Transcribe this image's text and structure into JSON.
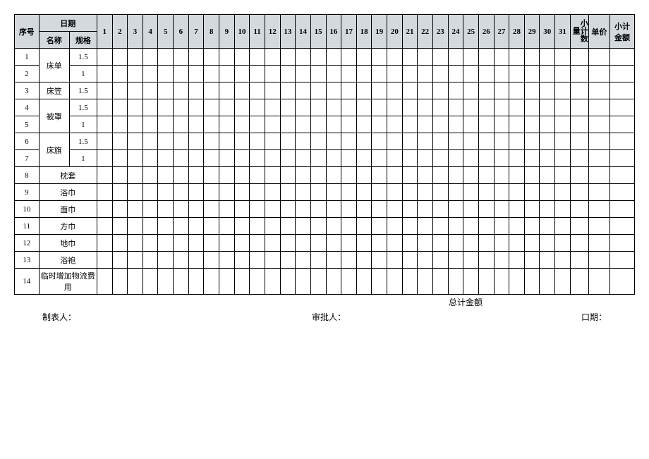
{
  "header": {
    "seq": "序号",
    "date": "日期",
    "name": "名称",
    "spec": "规格",
    "subqty": "小计数量",
    "price": "单价",
    "subamt": "小计金额",
    "days": [
      "1",
      "2",
      "3",
      "4",
      "5",
      "6",
      "7",
      "8",
      "9",
      "10",
      "11",
      "12",
      "13",
      "14",
      "15",
      "16",
      "17",
      "18",
      "19",
      "20",
      "21",
      "22",
      "23",
      "24",
      "25",
      "26",
      "27",
      "28",
      "29",
      "30",
      "31"
    ]
  },
  "rows": [
    {
      "seq": "1",
      "name": "床单",
      "spec": "1.5",
      "namerows": 2
    },
    {
      "seq": "2",
      "name": "",
      "spec": "1"
    },
    {
      "seq": "3",
      "name": "床笠",
      "spec": "1.5",
      "namerows": 1
    },
    {
      "seq": "4",
      "name": "被罩",
      "spec": "1.5",
      "namerows": 2
    },
    {
      "seq": "5",
      "name": "",
      "spec": "1"
    },
    {
      "seq": "6",
      "name": "床旗",
      "spec": "1.5",
      "namerows": 2
    },
    {
      "seq": "7",
      "name": "",
      "spec": "1"
    },
    {
      "seq": "8",
      "name": "枕套",
      "spec": "",
      "merge": true
    },
    {
      "seq": "9",
      "name": "浴巾",
      "spec": "",
      "merge": true
    },
    {
      "seq": "10",
      "name": "面巾",
      "spec": "",
      "merge": true
    },
    {
      "seq": "11",
      "name": "方巾",
      "spec": "",
      "merge": true
    },
    {
      "seq": "12",
      "name": "地巾",
      "spec": "",
      "merge": true
    },
    {
      "seq": "13",
      "name": "浴袍",
      "spec": "",
      "merge": true
    },
    {
      "seq": "14",
      "name": "临时增加物流费用",
      "spec": "",
      "merge": true,
      "tall": true
    }
  ],
  "footer": {
    "total": "总计金额",
    "preparer": "制表人：",
    "approver": "审批人：",
    "date": "口期："
  }
}
